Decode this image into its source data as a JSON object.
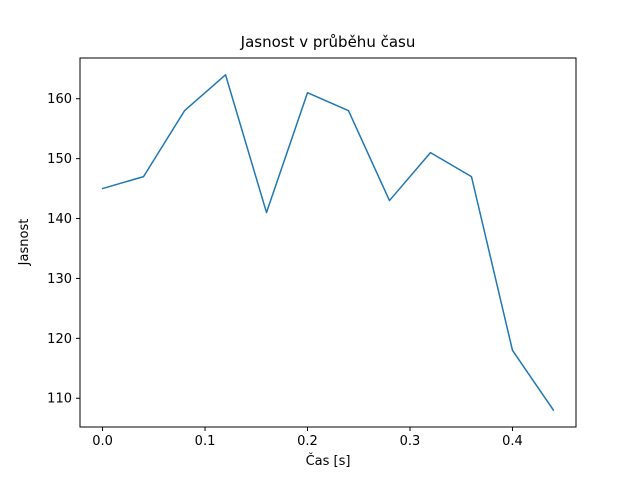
{
  "figure": {
    "background": "#ffffff"
  },
  "chart_data": {
    "type": "line",
    "title": "Jasnost v průběhu času",
    "xlabel": "Čas [s]",
    "ylabel": "Jasnost",
    "x": [
      0.0,
      0.04,
      0.08,
      0.12,
      0.16,
      0.2,
      0.24,
      0.28,
      0.32,
      0.36,
      0.4,
      0.44
    ],
    "y": [
      145,
      147,
      158,
      164,
      141,
      161,
      158,
      143,
      151,
      147,
      118,
      108
    ],
    "xticks": [
      0.0,
      0.1,
      0.2,
      0.3,
      0.4
    ],
    "xtick_labels": [
      "0.0",
      "0.1",
      "0.2",
      "0.3",
      "0.4"
    ],
    "yticks": [
      110,
      120,
      130,
      140,
      150,
      160
    ],
    "ytick_labels": [
      "110",
      "120",
      "130",
      "140",
      "150",
      "160"
    ],
    "xlim": [
      -0.022,
      0.462
    ],
    "ylim": [
      105.2,
      166.8
    ],
    "grid": false,
    "legend_position": "none",
    "line_color": "#1f77b4",
    "line_width": 1.5,
    "spine_color": "#000000"
  }
}
